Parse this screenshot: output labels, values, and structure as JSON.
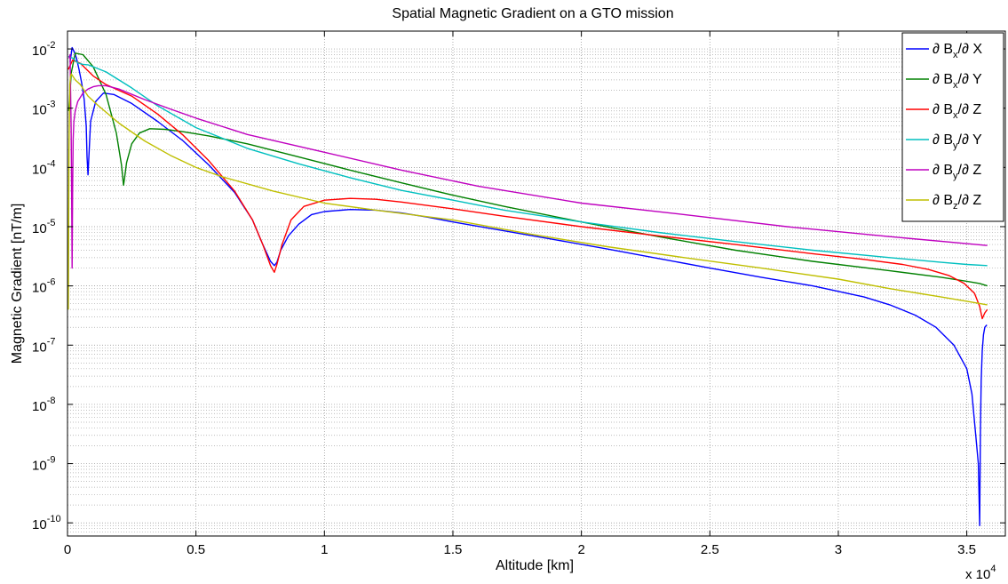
{
  "chart_data": {
    "type": "line",
    "title": "Spatial Magnetic Gradient on a GTO mission",
    "xlabel": "Altitude [km]",
    "ylabel": "Magnetic Gradient [nT/m]",
    "x_multiplier": {
      "base": "x 10",
      "exp": "4"
    },
    "xlim": [
      0,
      36500
    ],
    "ylim": [
      6e-11,
      0.02
    ],
    "yscale": "log",
    "grid": true,
    "legend_position": "top-right",
    "x_ticks": [
      {
        "value": 0,
        "label": "0"
      },
      {
        "value": 5000,
        "label": "0.5"
      },
      {
        "value": 10000,
        "label": "1"
      },
      {
        "value": 15000,
        "label": "1.5"
      },
      {
        "value": 20000,
        "label": "2"
      },
      {
        "value": 25000,
        "label": "2.5"
      },
      {
        "value": 30000,
        "label": "3"
      },
      {
        "value": 35000,
        "label": "3.5"
      }
    ],
    "y_ticks": [
      {
        "value": 0.01,
        "base": "10",
        "exp": "-2"
      },
      {
        "value": 0.001,
        "base": "10",
        "exp": "-3"
      },
      {
        "value": 0.0001,
        "base": "10",
        "exp": "-4"
      },
      {
        "value": 1e-05,
        "base": "10",
        "exp": "-5"
      },
      {
        "value": 1e-06,
        "base": "10",
        "exp": "-6"
      },
      {
        "value": 1e-07,
        "base": "10",
        "exp": "-7"
      },
      {
        "value": 1e-08,
        "base": "10",
        "exp": "-8"
      },
      {
        "value": 1e-09,
        "base": "10",
        "exp": "-9"
      },
      {
        "value": 1e-10,
        "base": "10",
        "exp": "-10"
      }
    ],
    "series": [
      {
        "name": "∂ Bx/∂ X",
        "label_main": "∂ B",
        "label_sub": "x",
        "label_tail": "/∂ X",
        "color": "#0000ff",
        "x": [
          100,
          180,
          260,
          350,
          450,
          550,
          650,
          730,
          760,
          800,
          900,
          1100,
          1400,
          1800,
          2500,
          3500,
          4500,
          5500,
          6500,
          7200,
          7600,
          7900,
          8050,
          8150,
          8300,
          8600,
          9000,
          9500,
          10000,
          11000,
          12000,
          13000,
          14000,
          15000,
          17000,
          19000,
          21000,
          23000,
          25000,
          27000,
          29000,
          31000,
          32000,
          33000,
          33800,
          34500,
          35000,
          35200,
          35350,
          35450,
          35500,
          35530,
          35560,
          35600,
          35650,
          35700,
          35780
        ],
        "y": [
          0.006,
          0.0105,
          0.009,
          0.007,
          0.0045,
          0.0027,
          0.0014,
          0.0005,
          0.00015,
          7.5e-05,
          0.0006,
          0.0013,
          0.0018,
          0.0017,
          0.0012,
          0.0006,
          0.00028,
          0.00011,
          3.8e-05,
          1.3e-05,
          5e-06,
          2.6e-06,
          2.2e-06,
          2.5e-06,
          4e-06,
          7e-06,
          1.1e-05,
          1.6e-05,
          1.8e-05,
          1.95e-05,
          1.9e-05,
          1.7e-05,
          1.45e-05,
          1.2e-05,
          8.5e-06,
          6e-06,
          4.2e-06,
          2.9e-06,
          2e-06,
          1.4e-06,
          1e-06,
          6.5e-07,
          4.8e-07,
          3.2e-07,
          2e-07,
          1e-07,
          4e-08,
          1.5e-08,
          3e-09,
          1e-09,
          9e-11,
          3e-09,
          2.5e-08,
          8e-08,
          1.5e-07,
          2e-07,
          2.2e-07
        ]
      },
      {
        "name": "∂ Bx/∂ Y",
        "label_main": "∂ B",
        "label_sub": "x",
        "label_tail": "/∂ Y",
        "color": "#008000",
        "x": [
          50,
          150,
          300,
          600,
          1000,
          1500,
          1900,
          2100,
          2180,
          2220,
          2300,
          2500,
          2800,
          3200,
          3800,
          4500,
          5500,
          7000,
          9000,
          11000,
          13000,
          15000,
          17000,
          20000,
          23000,
          26000,
          29000,
          32000,
          34000,
          35000,
          35500,
          35800
        ],
        "y": [
          0.0009,
          0.004,
          0.0085,
          0.008,
          0.005,
          0.0017,
          0.00038,
          0.00011,
          5e-05,
          6.5e-05,
          0.00012,
          0.00025,
          0.00038,
          0.00045,
          0.00044,
          0.0004,
          0.00034,
          0.00025,
          0.00015,
          9e-05,
          5.5e-05,
          3.4e-05,
          2.2e-05,
          1.2e-05,
          6.8e-06,
          4e-06,
          2.6e-06,
          1.8e-06,
          1.4e-06,
          1.2e-06,
          1.1e-06,
          1e-06
        ]
      },
      {
        "name": "∂ Bx/∂ Z",
        "label_main": "∂ B",
        "label_sub": "x",
        "label_tail": "/∂ Z",
        "color": "#ff0000",
        "x": [
          30,
          200,
          500,
          1000,
          1500,
          2500,
          3500,
          4500,
          5500,
          6500,
          7200,
          7600,
          7900,
          8050,
          8150,
          8350,
          8700,
          9200,
          10000,
          11000,
          12000,
          13000,
          15000,
          17000,
          20000,
          23000,
          26000,
          29000,
          31000,
          32500,
          33500,
          34300,
          34900,
          35300,
          35500,
          35600,
          35700,
          35800
        ],
        "y": [
          0.0045,
          0.0065,
          0.0057,
          0.0035,
          0.0025,
          0.0016,
          0.0008,
          0.00035,
          0.00013,
          4e-05,
          1.3e-05,
          5e-06,
          2.2e-06,
          1.7e-06,
          2.3e-06,
          5e-06,
          1.3e-05,
          2.2e-05,
          2.8e-05,
          3e-05,
          2.9e-05,
          2.6e-05,
          2e-05,
          1.5e-05,
          1e-05,
          7e-06,
          5e-06,
          3.5e-06,
          2.8e-06,
          2.3e-06,
          1.9e-06,
          1.5e-06,
          1.1e-06,
          7.5e-07,
          4.5e-07,
          2.8e-07,
          3.5e-07,
          4e-07
        ]
      },
      {
        "name": "∂ By/∂ Y",
        "label_main": "∂ B",
        "label_sub": "y",
        "label_tail": "/∂ Y",
        "color": "#00bfbf",
        "x": [
          30,
          200,
          400,
          600,
          800,
          1000,
          1500,
          2500,
          3500,
          5000,
          7000,
          9000,
          11000,
          13000,
          15000,
          17000,
          20000,
          23000,
          26000,
          29000,
          32000,
          34000,
          35000,
          35800
        ],
        "y": [
          0.0075,
          0.007,
          0.0058,
          0.0055,
          0.0054,
          0.005,
          0.0041,
          0.0022,
          0.0011,
          0.00047,
          0.00021,
          0.000115,
          6.7e-05,
          4.1e-05,
          2.8e-05,
          1.9e-05,
          1.2e-05,
          8e-06,
          5.6e-06,
          4e-06,
          3e-06,
          2.5e-06,
          2.3e-06,
          2.2e-06
        ]
      },
      {
        "name": "∂ By/∂ Z",
        "label_main": "∂ B",
        "label_sub": "y",
        "label_tail": "/∂ Z",
        "color": "#bf00bf",
        "x": [
          60,
          100,
          140,
          160,
          180,
          200,
          220,
          250,
          300,
          400,
          600,
          800,
          1000,
          1200,
          1500,
          2000,
          3000,
          4000,
          5000,
          7000,
          10000,
          13000,
          16000,
          20000,
          24000,
          28000,
          32000,
          35800
        ],
        "y": [
          0.007,
          0.008,
          0.00045,
          5e-05,
          2e-06,
          5e-05,
          0.0003,
          0.0006,
          0.0009,
          0.0013,
          0.0018,
          0.0021,
          0.0023,
          0.0024,
          0.0024,
          0.0021,
          0.0014,
          0.00097,
          0.00068,
          0.00036,
          0.00018,
          9e-05,
          4.8e-05,
          2.5e-05,
          1.6e-05,
          1e-05,
          6.8e-06,
          4.8e-06
        ]
      },
      {
        "name": "∂ Bz/∂ Z",
        "label_main": "∂ B",
        "label_sub": "z",
        "label_tail": "/∂ Z",
        "color": "#bfbf00",
        "x": [
          30,
          60,
          90,
          120,
          150,
          200,
          300,
          500,
          800,
          1200,
          2000,
          3000,
          4000,
          5000,
          6000,
          8000,
          10000,
          12000,
          15000,
          18000,
          21000,
          24000,
          27000,
          30000,
          32000,
          34000,
          35000,
          35800
        ],
        "y": [
          4e-07,
          0.0002,
          0.0025,
          0.0035,
          0.0038,
          0.0035,
          0.003,
          0.0025,
          0.0016,
          0.0011,
          0.00056,
          0.00028,
          0.00016,
          0.0001,
          7e-05,
          4e-05,
          2.5e-05,
          1.9e-05,
          1.3e-05,
          7.5e-06,
          4.6e-06,
          3e-06,
          2e-06,
          1.3e-06,
          9e-07,
          6.5e-07,
          5.5e-07,
          4.8e-07
        ]
      }
    ]
  }
}
